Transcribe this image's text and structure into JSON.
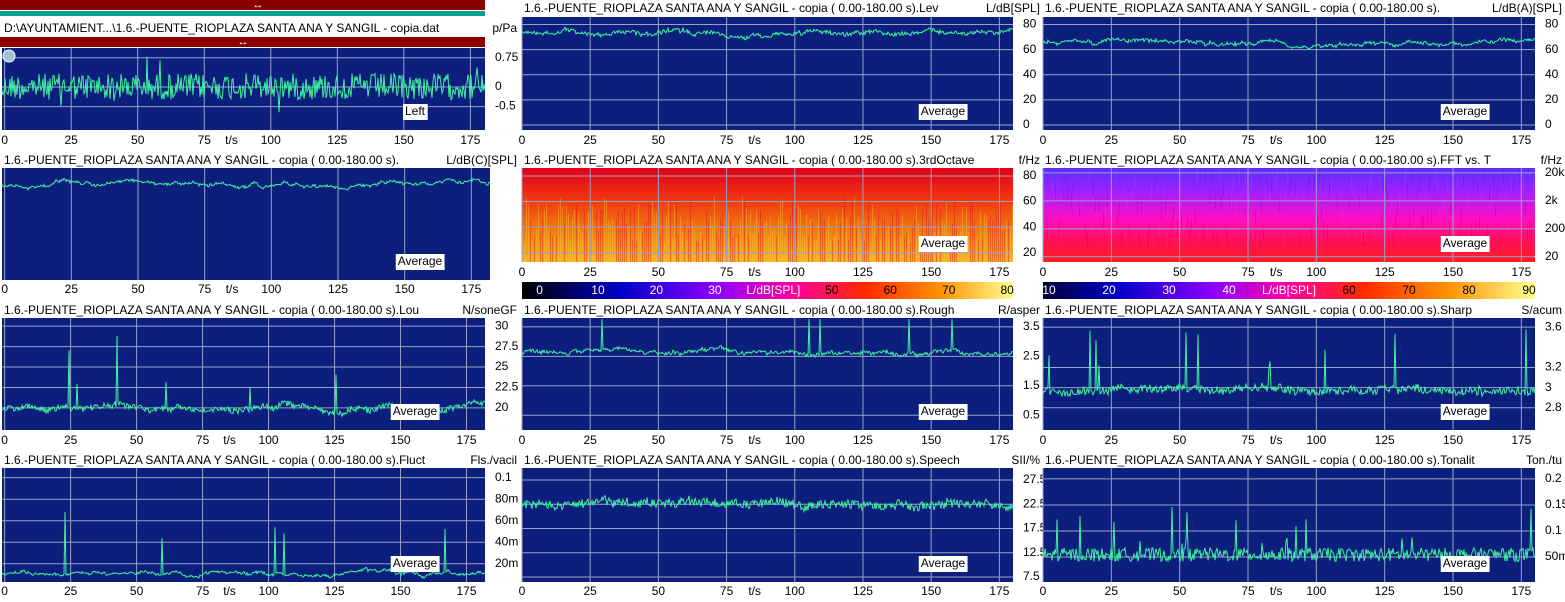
{
  "panels": [
    {
      "title": "D:\\AYUNTAMIENT...\\1.6.-PUENTE_RIOPLAZA SANTA ANA Y SANGIL - copia.dat",
      "unit": "p/Pa",
      "ylim": [
        -1.1,
        1.0
      ],
      "yticks": [
        0.75,
        0,
        -0.5
      ],
      "xlim": [
        -1,
        180.5
      ],
      "xticks": [
        0,
        25,
        50,
        75,
        100,
        125,
        150,
        175
      ],
      "xlabel": "t/s",
      "label": "Left"
    },
    {
      "title": "1.6.-PUENTE_RIOPLAZA SANTA ANA Y SANGIL - copia ( 0.00-180.00 s).Lev",
      "unit": "L/dB[SPL]",
      "ylim": [
        -4,
        86
      ],
      "yticks": [
        80,
        60,
        40,
        20,
        0
      ],
      "xlim": [
        0,
        180
      ],
      "xticks": [
        0,
        25,
        50,
        75,
        100,
        125,
        150,
        175
      ],
      "xlabel": "t/s",
      "label": "Average"
    },
    {
      "title": "1.6.-PUENTE_RIOPLAZA SANTA ANA Y SANGIL - copia ( 0.00-180.00 s).",
      "unit": "L/dB(A)[SPL]",
      "ylim": [
        -4,
        86
      ],
      "yticks": [
        80,
        60,
        40,
        20,
        0
      ],
      "xlim": [
        0,
        180
      ],
      "xticks": [
        0,
        25,
        50,
        75,
        100,
        125,
        150,
        175
      ],
      "xlabel": "t/s",
      "label": "Average"
    },
    {
      "title": "1.6.-PUENTE_RIOPLAZA SANTA ANA Y SANGIL - copia ( 0.00-180.00 s).",
      "unit": "L/dB(C)[SPL]",
      "ylim": [
        -4,
        86
      ],
      "xlim": [
        -1,
        182
      ],
      "xticks": [
        0,
        25,
        50,
        75,
        100,
        125,
        150,
        175
      ],
      "xlabel": "t/s",
      "label": "Average"
    },
    {
      "title": "1.6.-PUENTE_RIOPLAZA SANTA ANA Y SANGIL - copia ( 0.00-180.00 s).3rdOctave",
      "unit": "f/Hz",
      "ylim": [
        12.8,
        86.2
      ],
      "yticks": [
        80,
        60,
        40,
        20
      ],
      "xlim": [
        0,
        180
      ],
      "xticks": [
        0,
        25,
        50,
        75,
        100,
        125,
        150,
        175
      ],
      "xlabel": "t/s",
      "label": "Average",
      "colorbar": {
        "lim": [
          -3,
          81
        ],
        "ticks": [
          0,
          10,
          20,
          30,
          50,
          60,
          70,
          80
        ],
        "label": "L/dB[SPL]"
      }
    },
    {
      "title": "1.6.-PUENTE_RIOPLAZA SANTA ANA Y SANGIL - copia ( 0.00-180.00 s).FFT vs. T",
      "unit": "f/Hz",
      "log": true,
      "ylim": [
        13,
        30000
      ],
      "yticks": [
        {
          "value": 20000,
          "label": "20k"
        },
        {
          "value": 2000,
          "label": "2k"
        },
        200,
        20
      ],
      "xlim": [
        0,
        180
      ],
      "xticks": [
        0,
        25,
        50,
        75,
        100,
        125,
        150,
        175
      ],
      "xlabel": "t/s",
      "label": "Average",
      "colorbar": {
        "lim": [
          9,
          91
        ],
        "ticks": [
          10,
          20,
          30,
          40,
          60,
          70,
          80,
          90
        ],
        "label": "L/dB[SPL]"
      }
    },
    {
      "title": "1.6.-PUENTE_RIOPLAZA SANTA ANA Y SANGIL - copia ( 0.00-180.00 s).Lou",
      "unit": "N/soneGF",
      "ylim": [
        17.3,
        31
      ],
      "yticks": [
        30,
        27.5,
        25,
        22.5,
        20
      ],
      "xlim": [
        -1,
        182
      ],
      "xticks": [
        0,
        25,
        50,
        75,
        100,
        125,
        150,
        175
      ],
      "xlabel": "t/s",
      "label": "Average"
    },
    {
      "title": "1.6.-PUENTE_RIOPLAZA SANTA ANA Y SANGIL - copia ( 0.00-180.00 s).Rough",
      "unit": "R/asper",
      "ylim": [
        0,
        3.8
      ],
      "yticks": [
        3.5,
        2.5,
        1.5,
        0.5
      ],
      "xlim": [
        0,
        180
      ],
      "xticks": [
        0,
        25,
        50,
        75,
        100,
        125,
        150,
        175
      ],
      "xlabel": "t/s",
      "label": "Average"
    },
    {
      "title": "1.6.-PUENTE_RIOPLAZA SANTA ANA Y SANGIL - copia ( 0.00-180.00 s).Sharp",
      "unit": "S/acum",
      "ylim": [
        2.58,
        3.69
      ],
      "yticks": [
        3.6,
        3.2,
        3,
        2.8
      ],
      "xlim": [
        0,
        180
      ],
      "xticks": [
        0,
        25,
        50,
        75,
        100,
        125,
        150,
        175
      ],
      "xlabel": "t/s",
      "label": "Average"
    },
    {
      "title": "1.6.-PUENTE_RIOPLAZA SANTA ANA Y SANGIL - copia ( 0.00-180.00 s).Fluct",
      "unit": "Fls./vacil",
      "ylim": [
        0.003,
        0.109
      ],
      "yticks": [
        0.1,
        {
          "value": 0.08,
          "label": "80m"
        },
        {
          "value": 0.06,
          "label": "60m"
        },
        {
          "value": 0.04,
          "label": "40m"
        },
        {
          "value": 0.02,
          "label": "20m"
        }
      ],
      "xlim": [
        -1,
        182
      ],
      "xticks": [
        0,
        25,
        50,
        75,
        100,
        125,
        150,
        175
      ],
      "xlabel": "t/s",
      "label": "Average"
    },
    {
      "title": "1.6.-PUENTE_RIOPLAZA SANTA ANA Y SANGIL - copia ( 0.00-180.00 s).Speech",
      "unit": "SII/%",
      "ylim": [
        6.47,
        29.97
      ],
      "yticks": [
        27.5,
        22.5,
        17.5,
        12.5,
        7.5
      ],
      "xlim": [
        0,
        180
      ],
      "xticks": [
        0,
        25,
        50,
        75,
        100,
        125,
        150,
        175
      ],
      "xlabel": "t/s",
      "label": "Average"
    },
    {
      "title": "1.6.-PUENTE_RIOPLAZA SANTA ANA Y SANGIL - copia ( 0.00-180.00 s).Tonalit",
      "unit": "Ton./tu",
      "ylim": [
        0.002,
        0.221
      ],
      "yticks": [
        0.2,
        0.15,
        0.1,
        {
          "value": 0.05,
          "label": "50m"
        }
      ],
      "xlim": [
        0,
        180
      ],
      "xticks": [
        0,
        25,
        50,
        75,
        100,
        125,
        150,
        175
      ],
      "xlabel": "t/s",
      "label": "Average"
    }
  ]
}
